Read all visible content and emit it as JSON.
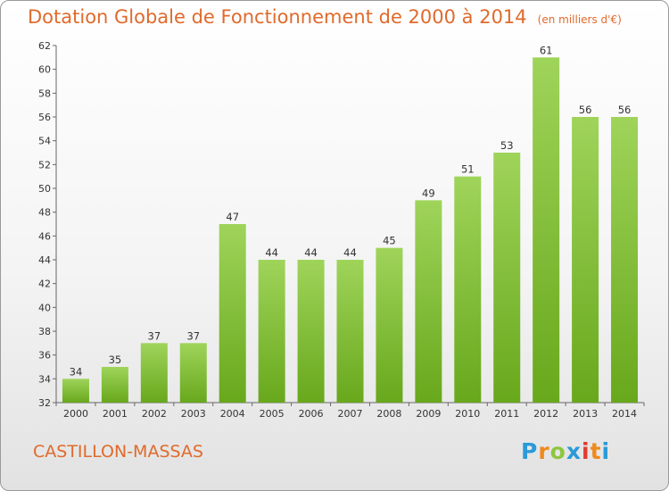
{
  "title": "Dotation Globale de Fonctionnement de 2000 à 2014",
  "subtitle": "(en milliers d'€)",
  "commune": "CASTILLON-MASSAS",
  "logo": {
    "letters": [
      "P",
      "r",
      "o",
      "x",
      "i",
      "t",
      "i"
    ],
    "colors": [
      "#2a9ad8",
      "#ef8a1d",
      "#8dc63f",
      "#2a9ad8",
      "#e23a2f",
      "#ef8a1d",
      "#2a9ad8"
    ]
  },
  "colors": {
    "bar_top": "#9fd45a",
    "bar_bottom": "#68a81c",
    "title": "#e06a2c"
  },
  "chart_data": {
    "type": "bar",
    "categories": [
      "2000",
      "2001",
      "2002",
      "2003",
      "2004",
      "2005",
      "2006",
      "2007",
      "2008",
      "2009",
      "2010",
      "2011",
      "2012",
      "2013",
      "2014"
    ],
    "values": [
      34,
      35,
      37,
      37,
      47,
      44,
      44,
      44,
      45,
      49,
      51,
      53,
      61,
      56,
      56
    ],
    "data_labels": [
      "34",
      "35",
      "37",
      "37",
      "47",
      "44",
      "44",
      "44",
      "45",
      "49",
      "51",
      "53",
      "61",
      "56",
      "56"
    ],
    "ylim": [
      32,
      62
    ],
    "yticks": [
      "32",
      "34",
      "36",
      "38",
      "40",
      "42",
      "44",
      "46",
      "48",
      "50",
      "52",
      "54",
      "56",
      "58",
      "60",
      "62"
    ],
    "grid": false
  }
}
